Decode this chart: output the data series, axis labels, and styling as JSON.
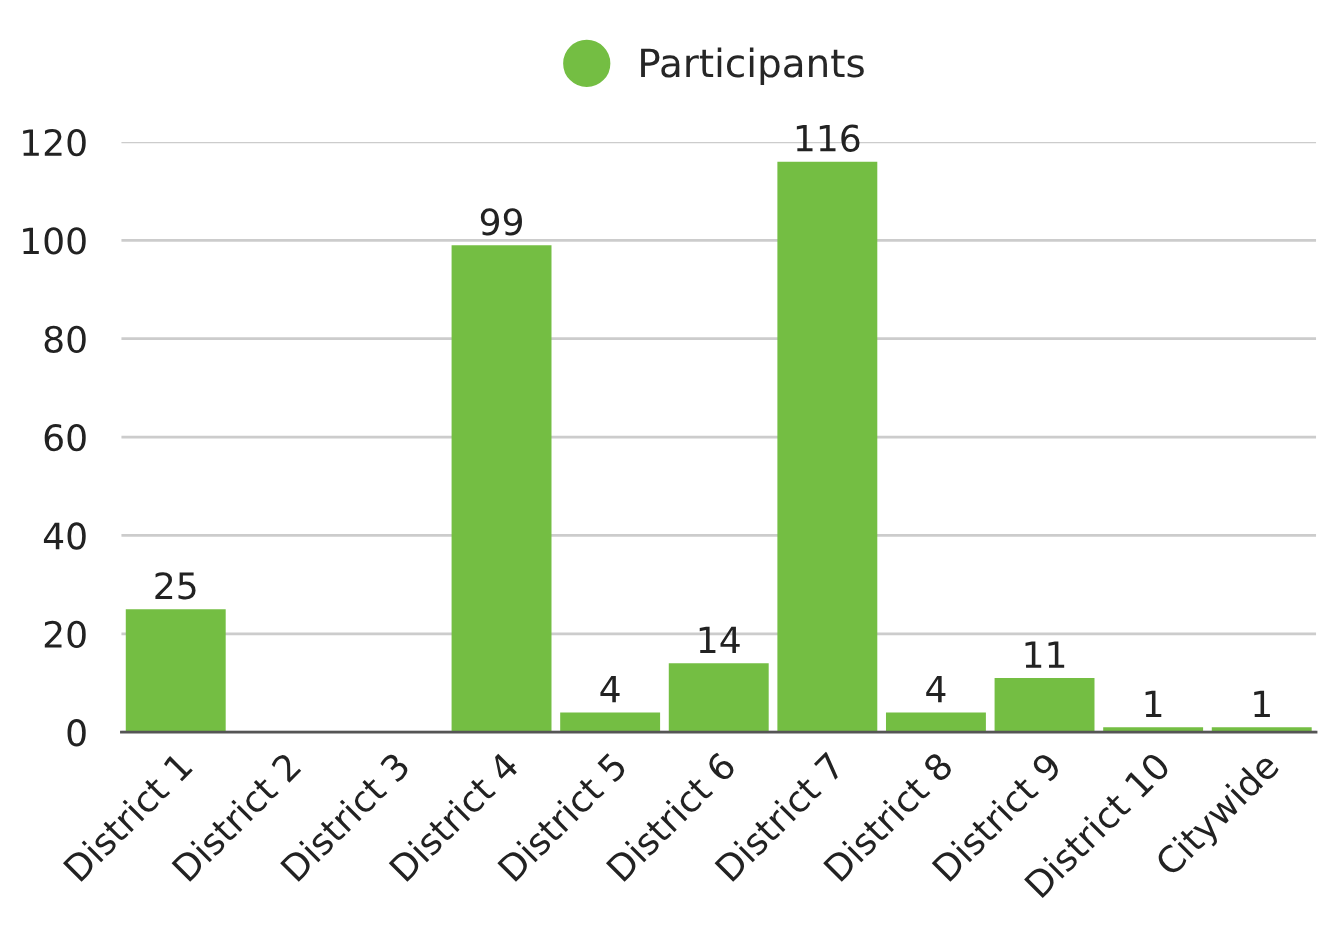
{
  "chart_data": {
    "type": "bar",
    "categories": [
      "District 1",
      "District 2",
      "District 3",
      "District 4",
      "District 5",
      "District 6",
      "District 7",
      "District 8",
      "District 9",
      "District 10",
      "Citywide"
    ],
    "series": [
      {
        "name": "Participants",
        "color": "#74be43",
        "values": [
          25,
          0,
          0,
          99,
          4,
          14,
          116,
          4,
          11,
          1,
          1
        ],
        "value_labels": [
          "25",
          null,
          null,
          "99",
          "4",
          "14",
          "116",
          "4",
          "11",
          "1",
          "1"
        ]
      }
    ],
    "ylim": [
      0,
      120
    ],
    "yticks": [
      0,
      20,
      40,
      60,
      80,
      100,
      120
    ],
    "grid": "y",
    "legend": "top",
    "marker": "circle"
  }
}
